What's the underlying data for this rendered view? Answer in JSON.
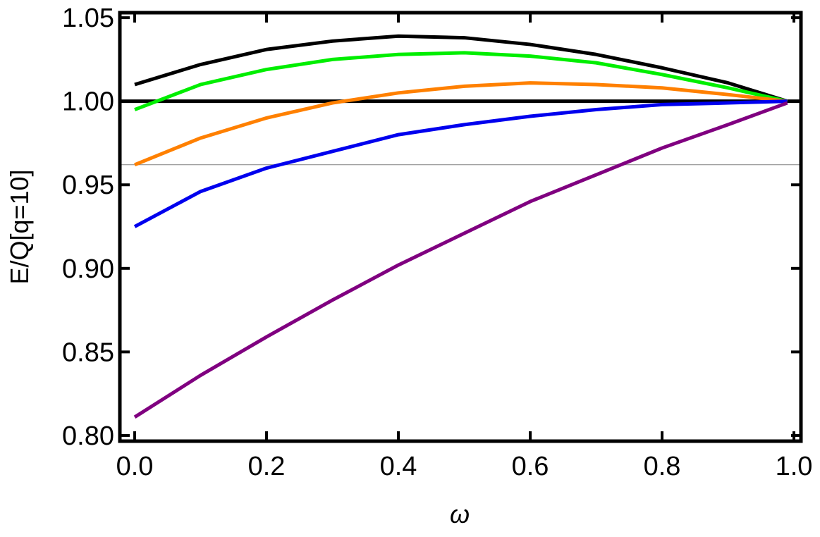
{
  "chart_data": {
    "type": "line",
    "x_label": "ω",
    "y_label": "E/Q[q=10]",
    "x": [
      0,
      0.1,
      0.2,
      0.3,
      0.4,
      0.5,
      0.6,
      0.7,
      0.8,
      0.9,
      0.99
    ],
    "series": [
      {
        "color": "#000000",
        "values": [
          1.01,
          1.022,
          1.031,
          1.036,
          1.039,
          1.038,
          1.034,
          1.028,
          1.02,
          1.011,
          1.0
        ]
      },
      {
        "color": "#00ee00",
        "values": [
          0.995,
          1.01,
          1.019,
          1.025,
          1.028,
          1.029,
          1.027,
          1.023,
          1.016,
          1.008,
          1.0
        ]
      },
      {
        "color": "#ff8000",
        "values": [
          0.962,
          0.978,
          0.99,
          0.999,
          1.005,
          1.009,
          1.011,
          1.01,
          1.008,
          1.004,
          1.0
        ]
      },
      {
        "color": "#0000ee",
        "values": [
          0.925,
          0.946,
          0.96,
          0.97,
          0.98,
          0.986,
          0.991,
          0.995,
          0.998,
          0.999,
          1.0
        ]
      },
      {
        "color": "#800080",
        "values": [
          0.811,
          0.836,
          0.859,
          0.881,
          0.902,
          0.921,
          0.94,
          0.956,
          0.972,
          0.986,
          0.999
        ]
      }
    ],
    "reference_lines": [
      {
        "value": 1.0,
        "color": "#000000",
        "weight": "bold"
      },
      {
        "value": 0.962,
        "color": "#808080",
        "weight": "normal"
      }
    ],
    "xlim": [
      -0.0225,
      1.0107
    ],
    "ylim": [
      0.7966,
      1.053
    ],
    "xticks": [
      {
        "value": 0,
        "label": "0.0"
      },
      0.2,
      0.4,
      0.6,
      0.8,
      {
        "value": 1,
        "label": "1.0"
      }
    ],
    "yticks": [
      {
        "value": 0.8,
        "label": "0.80"
      },
      0.85,
      {
        "value": 0.9,
        "label": "0.90"
      },
      0.95,
      {
        "value": 1.0,
        "label": "1.00"
      },
      1.05
    ],
    "grid": false
  }
}
